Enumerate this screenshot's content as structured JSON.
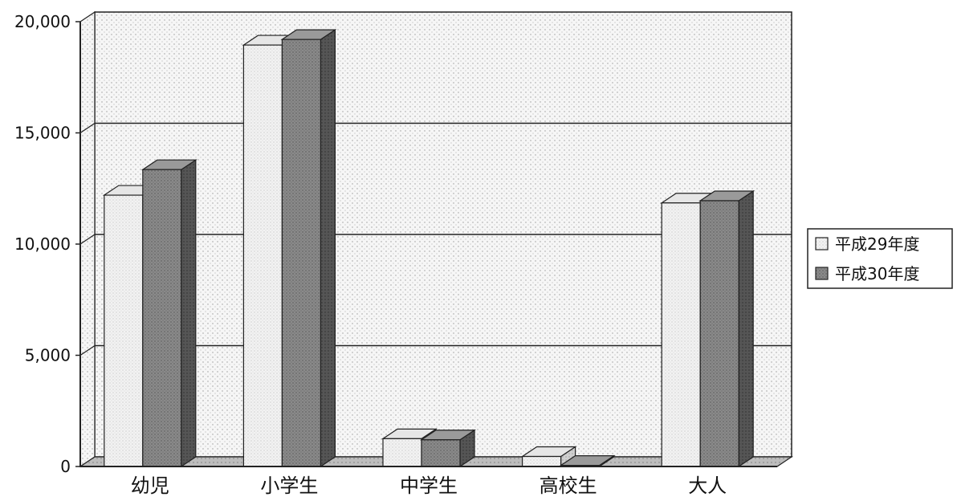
{
  "chart_data": {
    "type": "bar",
    "title": "",
    "xlabel": "",
    "ylabel": "",
    "categories": [
      "幼児",
      "小学生",
      "中学生",
      "高校生",
      "大人"
    ],
    "series": [
      {
        "name": "平成29年度",
        "values": [
          12200,
          18950,
          1250,
          450,
          11850
        ],
        "color": "#eeeeee"
      },
      {
        "name": "平成30年度",
        "values": [
          13350,
          19200,
          1200,
          50,
          11950
        ],
        "color": "#7a7a7a"
      }
    ],
    "ylim": [
      0,
      20000
    ],
    "yticks": [
      "0",
      "5,000",
      "10,000",
      "15,000",
      "20,000"
    ],
    "grid": true,
    "legend": "right",
    "style": "3d-bar"
  }
}
